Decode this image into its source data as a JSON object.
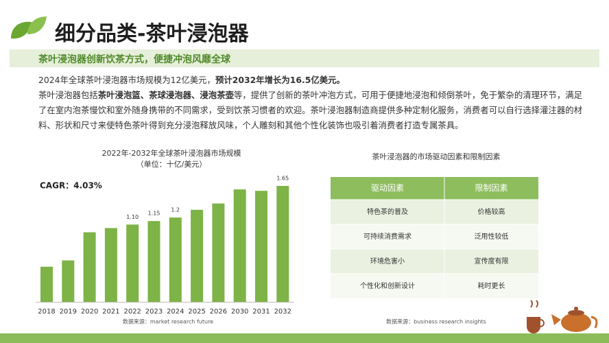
{
  "header": {
    "title": "细分品类-茶叶浸泡器",
    "subtitle": "茶叶浸泡器创新饮茶方式，便捷冲泡风靡全球"
  },
  "summary": {
    "paragraphs": [
      [
        {
          "text": "2024年全球茶叶浸泡器市场规模为12亿美元，",
          "bold": false
        },
        {
          "text": "预计2032年增长为16.5亿美元。",
          "bold": true
        }
      ],
      [
        {
          "text": "茶叶浸泡器包括",
          "bold": false
        },
        {
          "text": "茶叶浸泡篮、茶球浸泡器、浸泡茶壶",
          "bold": true
        },
        {
          "text": "等，提供了创新的茶叶冲泡方式，可用于便捷地浸泡和倾倒茶叶，免于繁杂的清理环节，满足了在室内泡茶慢饮和室外随身携带的不同需求，受到饮茶习惯者的欢迎。茶叶浸泡器制造商提供多种定制化服务，消费者可以自行选择灌注器的材料、形状和尺寸来使特色茶叶得到充分浸泡释放风味，个人雕刻和其他个性化装饰也吸引着消费者打造专属茶具。",
          "bold": false
        }
      ]
    ]
  },
  "chart_data": {
    "type": "bar",
    "title": "2022年-2032年全球茶叶浸泡器市场规模",
    "subtitle": "（单位：十亿/美元）",
    "annotation": "CAGR：4.03%",
    "source": "数据来源：market research future",
    "categories": [
      "2018",
      "2019",
      "2020",
      "2021",
      "2022",
      "2023",
      "2024",
      "2025",
      "2026",
      "2030",
      "2031",
      "2032"
    ],
    "values": [
      0.5,
      0.59,
      0.99,
      1.05,
      1.1,
      1.15,
      1.2,
      1.31,
      1.4,
      1.6,
      1.58,
      1.65
    ],
    "value_labels": [
      null,
      null,
      null,
      null,
      "1.10",
      "1.15",
      "1.2",
      null,
      null,
      null,
      null,
      "1.65"
    ],
    "color": "#7db347"
  },
  "table": {
    "title": "茶叶浸泡器的市场驱动因素和限制因素",
    "headers": [
      "驱动因素",
      "限制因素"
    ],
    "rows": [
      [
        "特色茶的普及",
        "价格较高"
      ],
      [
        "可持续消费需求",
        "泛用性较低"
      ],
      [
        "环境危害小",
        "宣传度有限"
      ],
      [
        "个性化和创新设计",
        "耗时更长"
      ]
    ],
    "source": "数据来源：business research insights"
  }
}
